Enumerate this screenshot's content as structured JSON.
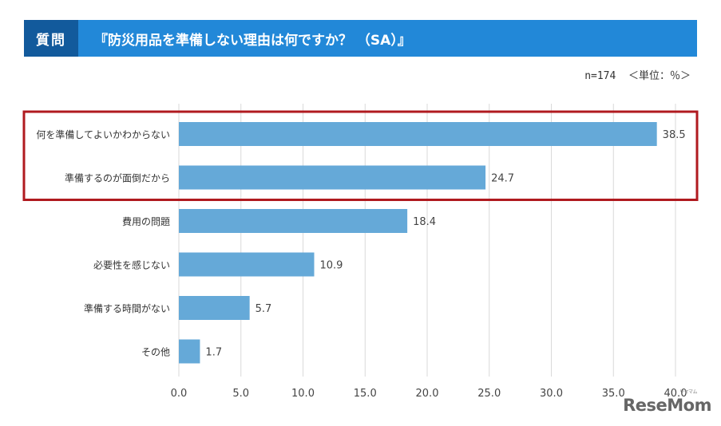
{
  "header": {
    "tag": "質問",
    "title": "『防災用品を準備しない理由は何ですか？ （SA）』"
  },
  "note": "n=174  ＜単位：％＞",
  "watermark": {
    "text": "ReseMom",
    "sub": "リセマム"
  },
  "colors": {
    "bar": "#65a9d8",
    "header": "#2288d8",
    "tag": "#125a9c",
    "highlight": "#b01a1f",
    "grid": "#d9d9d9"
  },
  "chart_data": {
    "type": "bar",
    "orientation": "horizontal",
    "categories": [
      "何を準備してよいかわからない",
      "準備するのが面倒だから",
      "費用の問題",
      "必要性を感じない",
      "準備する時間がない",
      "その他"
    ],
    "values": [
      38.5,
      24.7,
      18.4,
      10.9,
      5.7,
      1.7
    ],
    "value_labels": [
      "38.5",
      "24.7",
      "18.4",
      "10.9",
      "5.7",
      "1.7"
    ],
    "xlim": [
      0,
      40
    ],
    "ticks": [
      "0.0",
      "5.0",
      "10.0",
      "15.0",
      "20.0",
      "25.0",
      "30.0",
      "35.0",
      "40.0"
    ],
    "grid": true,
    "highlighted_categories": [
      0,
      1
    ],
    "title": "",
    "xlabel": "",
    "ylabel": ""
  }
}
